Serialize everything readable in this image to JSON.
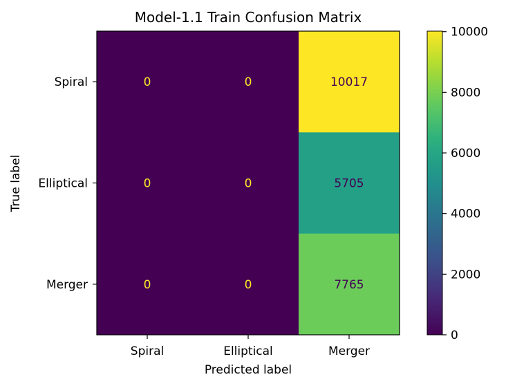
{
  "chart_data": {
    "type": "heatmap",
    "title": "Model-1.1 Train Confusion Matrix",
    "xlabel": "Predicted label",
    "ylabel": "True label",
    "x_categories": [
      "Spiral",
      "Elliptical",
      "Merger"
    ],
    "y_categories": [
      "Spiral",
      "Elliptical",
      "Merger"
    ],
    "values": [
      [
        0,
        0,
        10017
      ],
      [
        0,
        0,
        5705
      ],
      [
        0,
        0,
        7765
      ]
    ],
    "colormap": "viridis",
    "colorbar": {
      "range": [
        0,
        10017
      ],
      "ticks": [
        0,
        2000,
        4000,
        6000,
        8000,
        10000
      ],
      "tick_labels": [
        "0",
        "2000",
        "4000",
        "6000",
        "8000",
        "10000"
      ]
    },
    "text_colors": {
      "on_dark": "#fde725",
      "on_light": "#440154"
    }
  }
}
